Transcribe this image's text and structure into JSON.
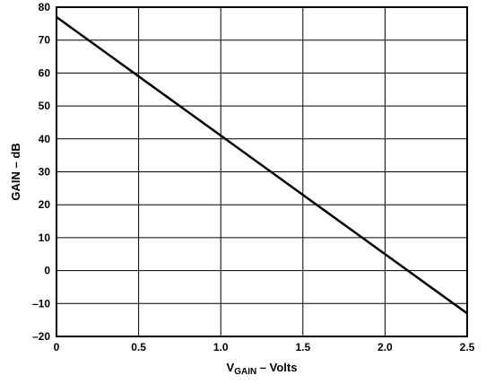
{
  "chart_data": {
    "type": "line",
    "title": "",
    "xlabel": {
      "prefix": "V",
      "subscript": "GAIN",
      "suffix": " – Volts"
    },
    "ylabel": "GAIN – dB",
    "xlim": [
      0,
      2.5
    ],
    "ylim": [
      -20,
      80
    ],
    "x_ticks": [
      0,
      0.5,
      1.0,
      1.5,
      2.0,
      2.5
    ],
    "x_tick_labels": [
      "0",
      "0.5",
      "1.0",
      "1.5",
      "2.0",
      "2.5"
    ],
    "y_ticks": [
      -20,
      -10,
      0,
      10,
      20,
      30,
      40,
      50,
      60,
      70,
      80
    ],
    "y_tick_labels": [
      "–20",
      "–10",
      "0",
      "10",
      "20",
      "30",
      "40",
      "50",
      "60",
      "70",
      "80"
    ],
    "grid": true,
    "series": [
      {
        "x": [
          0,
          2.5
        ],
        "y": [
          77,
          -13
        ]
      }
    ],
    "colors": {
      "line": "#000000",
      "grid": "#000000",
      "background": "#ffffff"
    }
  }
}
